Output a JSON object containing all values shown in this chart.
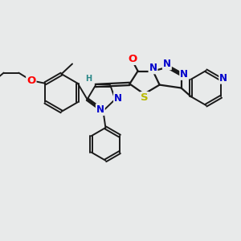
{
  "bg_color": "#e8eaea",
  "bond_color": "#1a1a1a",
  "atom_colors": {
    "O": "#ff0000",
    "N": "#0000cc",
    "S": "#b8b800",
    "H": "#2a8888",
    "C": "#1a1a1a"
  },
  "font_size_atom": 8.5,
  "lw_ring": 1.4,
  "lw_bridge": 1.6
}
